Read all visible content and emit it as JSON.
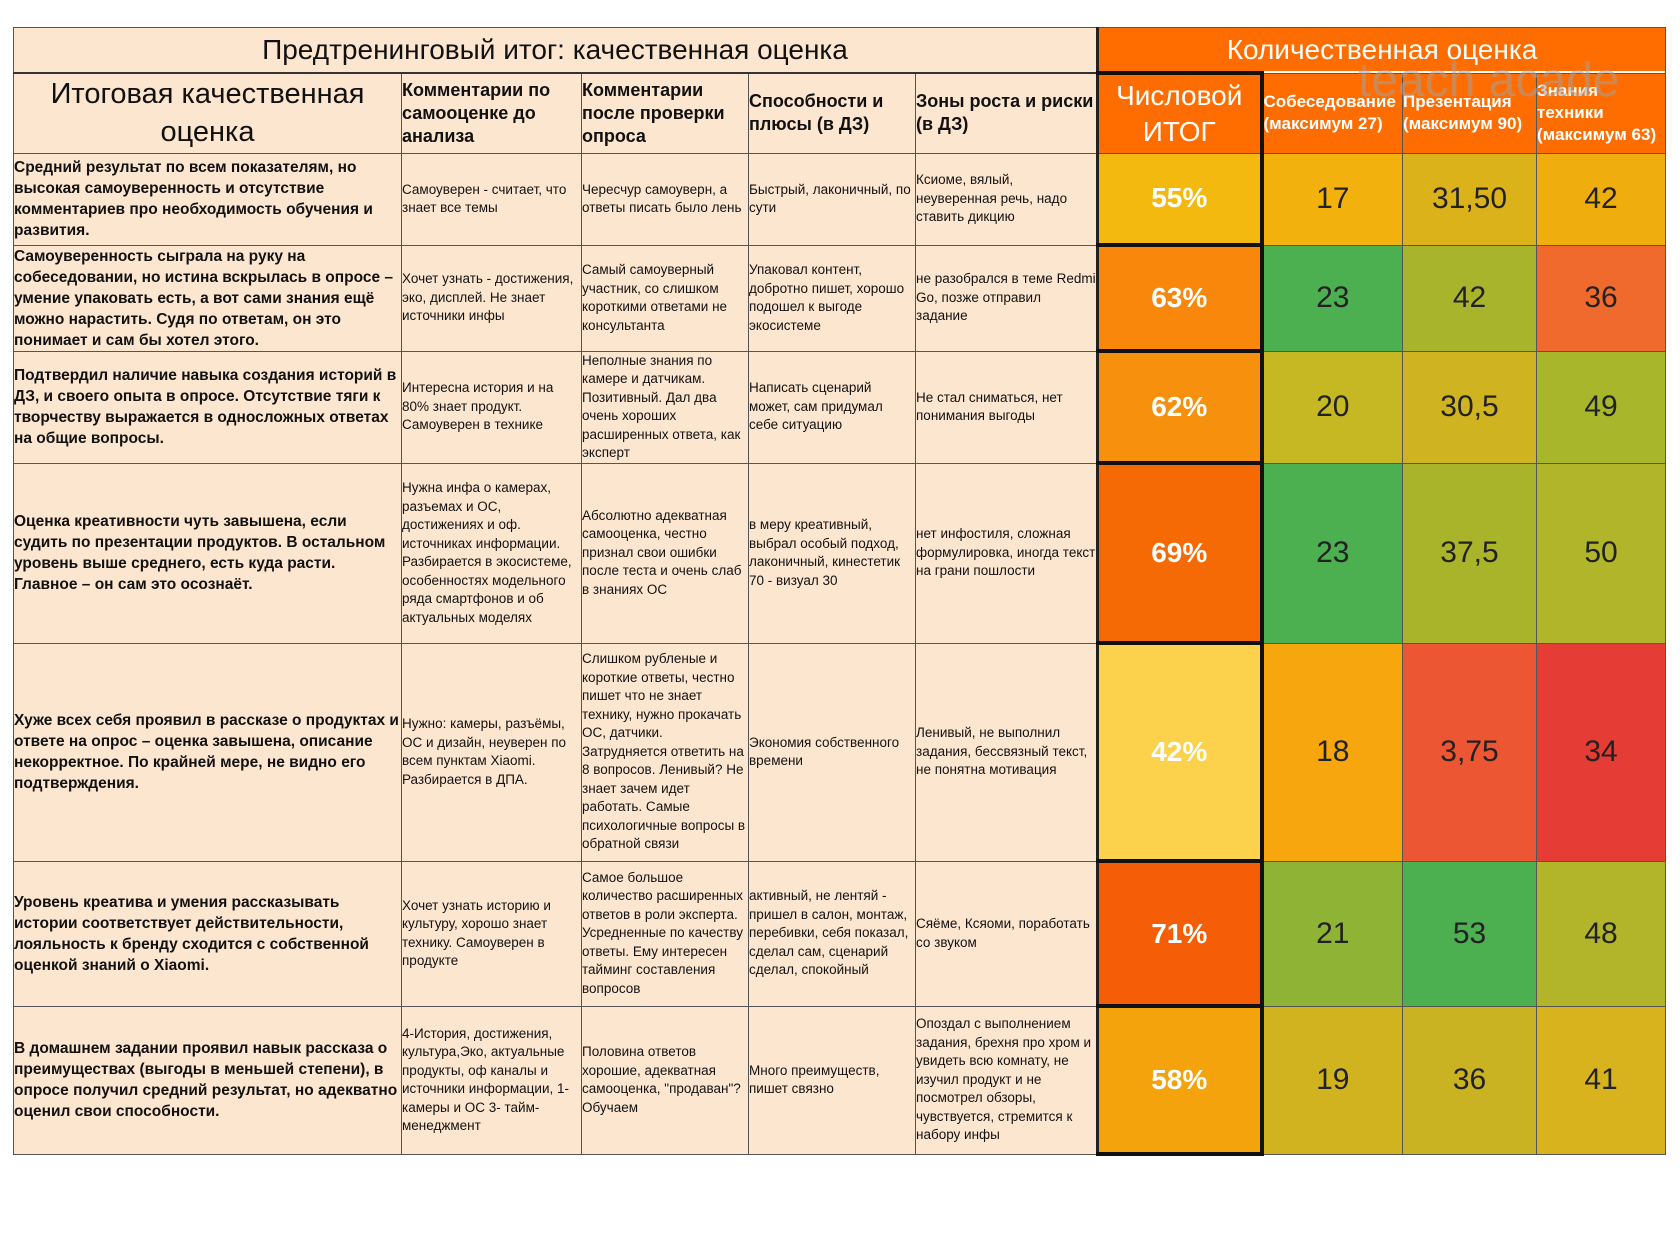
{
  "header": {
    "qualitative_title": "Предтренинговый итог: качественная оценка",
    "quantitative_title": "Количественная оценка"
  },
  "columns": {
    "final": "Итоговая качественная оценка",
    "self": "Комментарии по самооценке до анализа",
    "after": "Комментарии после проверки опроса",
    "abilities": "Способности и плюсы (в ДЗ)",
    "growth": "Зоны роста и риски (в ДЗ)",
    "numeric": "Числовой ИТОГ",
    "interview": "Собеседование (максимум 27)",
    "presentation": "Презентация (максимум 90)",
    "knowledge": "Знания техники (максимум 63)"
  },
  "watermark": "teach acade",
  "colors": {
    "header_orange": "#ff6d00",
    "left_bg": "#fde6d0",
    "green": "#4caf50",
    "yellow_green": "#c5b823",
    "yellow": "#f3c40f",
    "orange": "#f5a40d",
    "red_orange": "#ef5a2f",
    "red": "#e53935"
  },
  "rows": [
    {
      "final": "Средний результат по всем показателям, но высокая самоуверенность и отсутствие комментариев про необходимость обучения и развития.",
      "self": "Самоуверен - считает, что знает все темы",
      "after": "Чересчур самоуверн, а ответы писать было лень",
      "abilities": "Быстрый, лаконичный, по сути",
      "growth": "Ксиоме, вялый, неуверенная речь, надо ставить дикцию",
      "pct": "55%",
      "interview": "17",
      "presentation": "31,50",
      "knowledge": "42"
    },
    {
      "final": "Самоуверенность сыграла на руку на собеседовании, но истина вскрылась в опросе – умение упаковать есть, а вот сами знания ещё можно нарастить. Судя по ответам, он это понимает и сам бы хотел этого.",
      "self": "Хочет узнать - достижения, эко, дисплей. Не знает источники инфы",
      "after": "Самый самоуверный участник, со слишком короткими ответами не консультанта",
      "abilities": "Упаковал контент, добротно пишет, хорошо подошел к выгоде экосистеме",
      "growth": "не разобрался в теме Redmi Go, позже отправил задание",
      "pct": "63%",
      "interview": "23",
      "presentation": "42",
      "knowledge": "36"
    },
    {
      "final": "Подтвердил наличие навыка создания историй в ДЗ, и своего опыта в опросе. Отсутствие тяги к творчеству выражается в односложных ответах на общие вопросы.",
      "self": "Интересна история и на 80% знает продукт. Самоуверен в технике",
      "after": "Неполные знания по камере и датчикам. Позитивный. Дал два очень хороших расширенных ответа, как эксперт",
      "abilities": "Написать сценарий может, сам придумал себе ситуацию",
      "growth": "Не стал сниматься, нет понимания выгоды",
      "pct": "62%",
      "interview": "20",
      "presentation": "30,5",
      "knowledge": "49"
    },
    {
      "final": "Оценка креативности чуть завышена, если судить по презентации продуктов. В остальном уровень выше среднего, есть куда расти. Главное – он сам это осознаёт.",
      "self": "Нужна инфа о камерах, разъемах и ОС, достижениях и оф. источниках информации. Разбирается в экосистеме, особенностях модельного ряда смартфонов и об актуальных моделях",
      "after": "Абсолютно адекватная самооценка, честно признал свои ошибки после теста и очень слаб в знаниях ОС",
      "abilities": "в меру креативный, выбрал особый подход, лаконичный, кинестетик 70 - визуал 30",
      "growth": "нет инфостиля, сложная формулировка, иногда текст на грани пошлости",
      "pct": "69%",
      "interview": "23",
      "presentation": "37,5",
      "knowledge": "50"
    },
    {
      "final": "Хуже всех себя проявил в рассказе о продуктах и ответе на опрос – оценка завышена, описание некорректное. По крайней мере, не видно его подтверждения.",
      "self": "Нужно: камеры, разъёмы, ОС и дизайн, неуверен по всем пунктам Xiaomi. Разбирается в ДПА.",
      "after": "Слишком рубленые и короткие ответы, честно пишет что не знает технику, нужно прокачать ОС, датчики. Затрудняется ответить на 8 вопросов. Ленивый? Не знает зачем идет работать. Самые психологичные вопросы в обратной связи",
      "abilities": "Экономия собственного времени",
      "growth": "Ленивый, не выполнил задания, бессвязный текст, не понятна мотивация",
      "pct": "42%",
      "interview": "18",
      "presentation": "3,75",
      "knowledge": "34"
    },
    {
      "final": "Уровень креатива и умения рассказывать истории соответствует действительности, лояльность к бренду сходится с собственной оценкой знаний о Xiaomi.",
      "self": "Хочет узнать историю и культуру, хорошо знает технику. Самоуверен в продукте",
      "after": "Самое большое количество расширенных ответов в роли эксперта. Усредненные по качеству ответы. Ему интересен тайминг составления вопросов",
      "abilities": "активный, не лентяй - пришел в салон, монтаж, перебивки, себя показал, сделал сам, сценарий сделал, спокойный",
      "growth": "Сяёме, Ксяоми, поработать со звуком",
      "pct": "71%",
      "interview": "21",
      "presentation": "53",
      "knowledge": "48"
    },
    {
      "final": "В домашнем задании проявил навык рассказа о преимуществах (выгоды в меньшей степени), в опросе получил средний результат, но адекватно оценил свои способности.",
      "self": "4-История, достижения, культура,Эко, актуальные продукты, оф каналы и источники информации, 1- камеры и ОС 3- тайм-менеджмент",
      "after": "Половина ответов хорошие, адекватная самооценка, \"продаван\"? Обучаем",
      "abilities": "Много преимуществ, пишет связно",
      "growth": "Опоздал с выполнением задания, брехня про хром и увидеть всю комнату, не изучил продукт и не посмотрел обзоры, чувствуется, стремится к набору инфы",
      "pct": "58%",
      "interview": "19",
      "presentation": "36",
      "knowledge": "41"
    }
  ],
  "cell_colors": [
    {
      "pct": "#f4b90f",
      "interview": "#f3b10e",
      "presentation": "#dcb21a",
      "knowledge": "#f0ad0e"
    },
    {
      "pct": "#f8870c",
      "interview": "#4caf50",
      "presentation": "#a8b52c",
      "knowledge": "#ef6a2c"
    },
    {
      "pct": "#f7900c",
      "interview": "#c5b823",
      "presentation": "#cfb320",
      "knowledge": "#a8b62b"
    },
    {
      "pct": "#f66a06",
      "interview": "#4caf50",
      "presentation": "#a9b42b",
      "knowledge": "#b0b52a"
    },
    {
      "pct": "#fcd14b",
      "interview": "#f7a60d",
      "presentation": "#ec5633",
      "knowledge": "#e53c35"
    },
    {
      "pct": "#f55e07",
      "interview": "#8fb334",
      "presentation": "#4caf50",
      "knowledge": "#b2b529"
    },
    {
      "pct": "#f5a30d",
      "interview": "#d1b320",
      "presentation": "#c9b323",
      "knowledge": "#d8b31e"
    }
  ]
}
